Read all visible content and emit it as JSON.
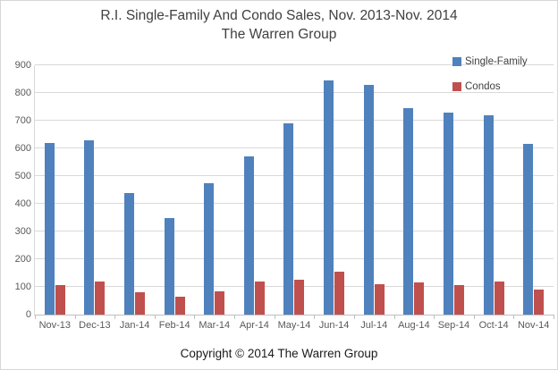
{
  "title": {
    "line1": "R.I. Single-Family And Condo Sales, Nov. 2013-Nov. 2014",
    "line2": "The Warren Group"
  },
  "footer": "Copyright © 2014 The Warren Group",
  "colors": {
    "single_family": "#4F81BD",
    "condos": "#C0504D",
    "gridline": "#D9D9D9",
    "axis_text": "#595959",
    "title_text": "#404040"
  },
  "chart_data": {
    "type": "bar",
    "title": "R.I. Single-Family And Condo Sales, Nov. 2013-Nov. 2014",
    "subtitle": "The Warren Group",
    "categories": [
      "Nov-13",
      "Dec-13",
      "Jan-14",
      "Feb-14",
      "Mar-14",
      "Apr-14",
      "May-14",
      "Jun-14",
      "Jul-14",
      "Aug-14",
      "Sep-14",
      "Oct-14",
      "Nov-14"
    ],
    "series": [
      {
        "name": "Single-Family",
        "color": "#4F81BD",
        "values": [
          620,
          630,
          440,
          350,
          475,
          570,
          690,
          845,
          830,
          745,
          730,
          720,
          615
        ]
      },
      {
        "name": "Condos",
        "color": "#C0504D",
        "values": [
          105,
          120,
          80,
          65,
          85,
          120,
          125,
          155,
          110,
          115,
          105,
          120,
          90
        ]
      }
    ],
    "xlabel": "",
    "ylabel": "",
    "ylim": [
      0,
      900
    ],
    "ytick_step": 100,
    "grid": true,
    "legend_position": "top-right"
  }
}
